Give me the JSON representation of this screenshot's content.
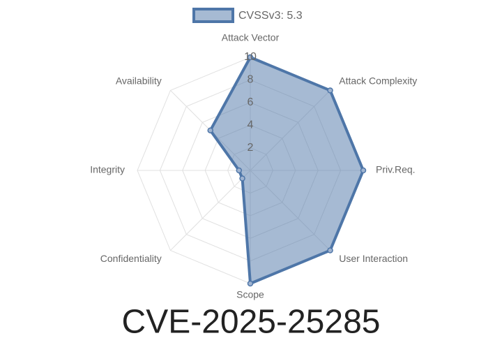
{
  "chart_data": {
    "type": "radar",
    "title": "CVE-2025-25285",
    "categories": [
      "Attack Vector",
      "Attack Complexity",
      "Priv.Req.",
      "User Interaction",
      "Scope",
      "Confidentiality",
      "Integrity",
      "Availability"
    ],
    "series": [
      {
        "name": "CVSSv3: 5.3",
        "color": "#4e76a8",
        "values": [
          10,
          10,
          10,
          10,
          10,
          1,
          1,
          5
        ]
      }
    ],
    "ylim": [
      0,
      10
    ],
    "yticks": [
      2,
      4,
      6,
      8,
      10
    ],
    "grid": true,
    "legend": "top"
  }
}
